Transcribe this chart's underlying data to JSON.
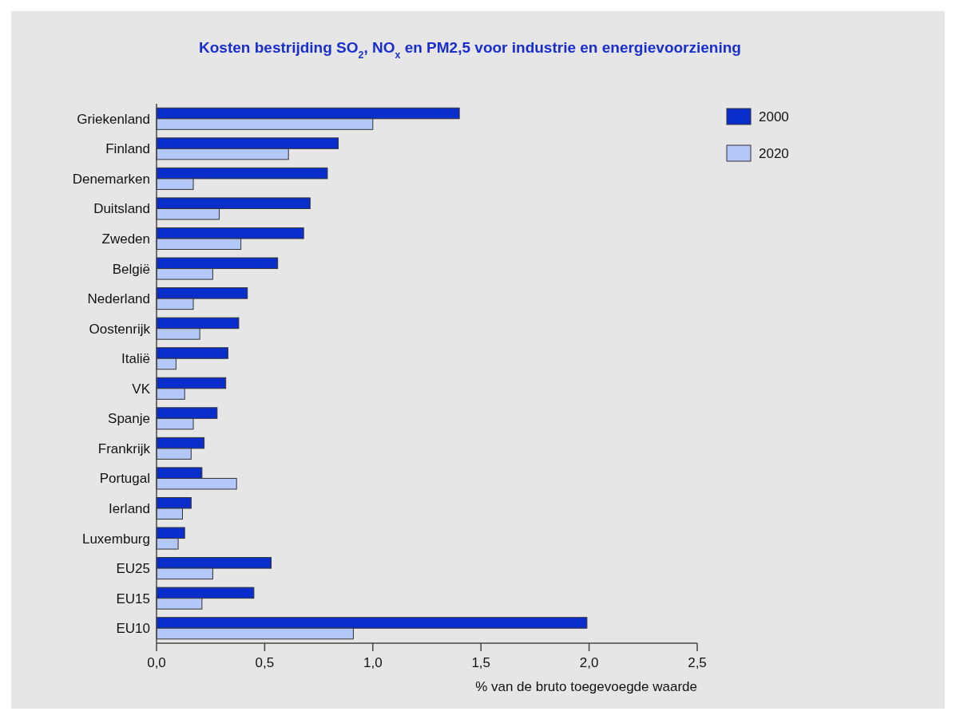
{
  "chart_data": {
    "type": "bar",
    "orientation": "horizontal",
    "title": "Kosten bestrijding SO$_{2}$, NO$_{x}$ en PM2,5 voor industrie en energievoorziening",
    "xlabel": "% van de bruto toegevoegde waarde",
    "categories": [
      "Griekenland",
      "Finland",
      "Denemarken",
      "Duitsland",
      "Zweden",
      "België",
      "Nederland",
      "Oostenrijk",
      "Italië",
      "VK",
      "Spanje",
      "Frankrijk",
      "Portugal",
      "Ierland",
      "Luxemburg",
      "EU25",
      "EU15",
      "EU10"
    ],
    "series": [
      {
        "name": "2000",
        "color": "#0a2ecc",
        "values": [
          1.4,
          0.84,
          0.79,
          0.71,
          0.68,
          0.56,
          0.42,
          0.38,
          0.33,
          0.32,
          0.28,
          0.22,
          0.21,
          0.16,
          0.13,
          0.53,
          0.45,
          1.99
        ]
      },
      {
        "name": "2020",
        "color": "#b3c8f8",
        "values": [
          1.0,
          0.61,
          0.17,
          0.29,
          0.39,
          0.26,
          0.17,
          0.2,
          0.09,
          0.13,
          0.17,
          0.16,
          0.37,
          0.12,
          0.1,
          0.26,
          0.21,
          0.91
        ]
      }
    ],
    "xlim": [
      0,
      2.5
    ],
    "xticks": [
      {
        "value": 0,
        "label": "0,0"
      },
      {
        "value": 0.5,
        "label": "0,5"
      },
      {
        "value": 1,
        "label": "1,0"
      },
      {
        "value": 1.5,
        "label": "1,5"
      },
      {
        "value": 2,
        "label": "2,0"
      },
      {
        "value": 2.5,
        "label": "2,5"
      }
    ],
    "grid": false,
    "legend": "top right"
  }
}
